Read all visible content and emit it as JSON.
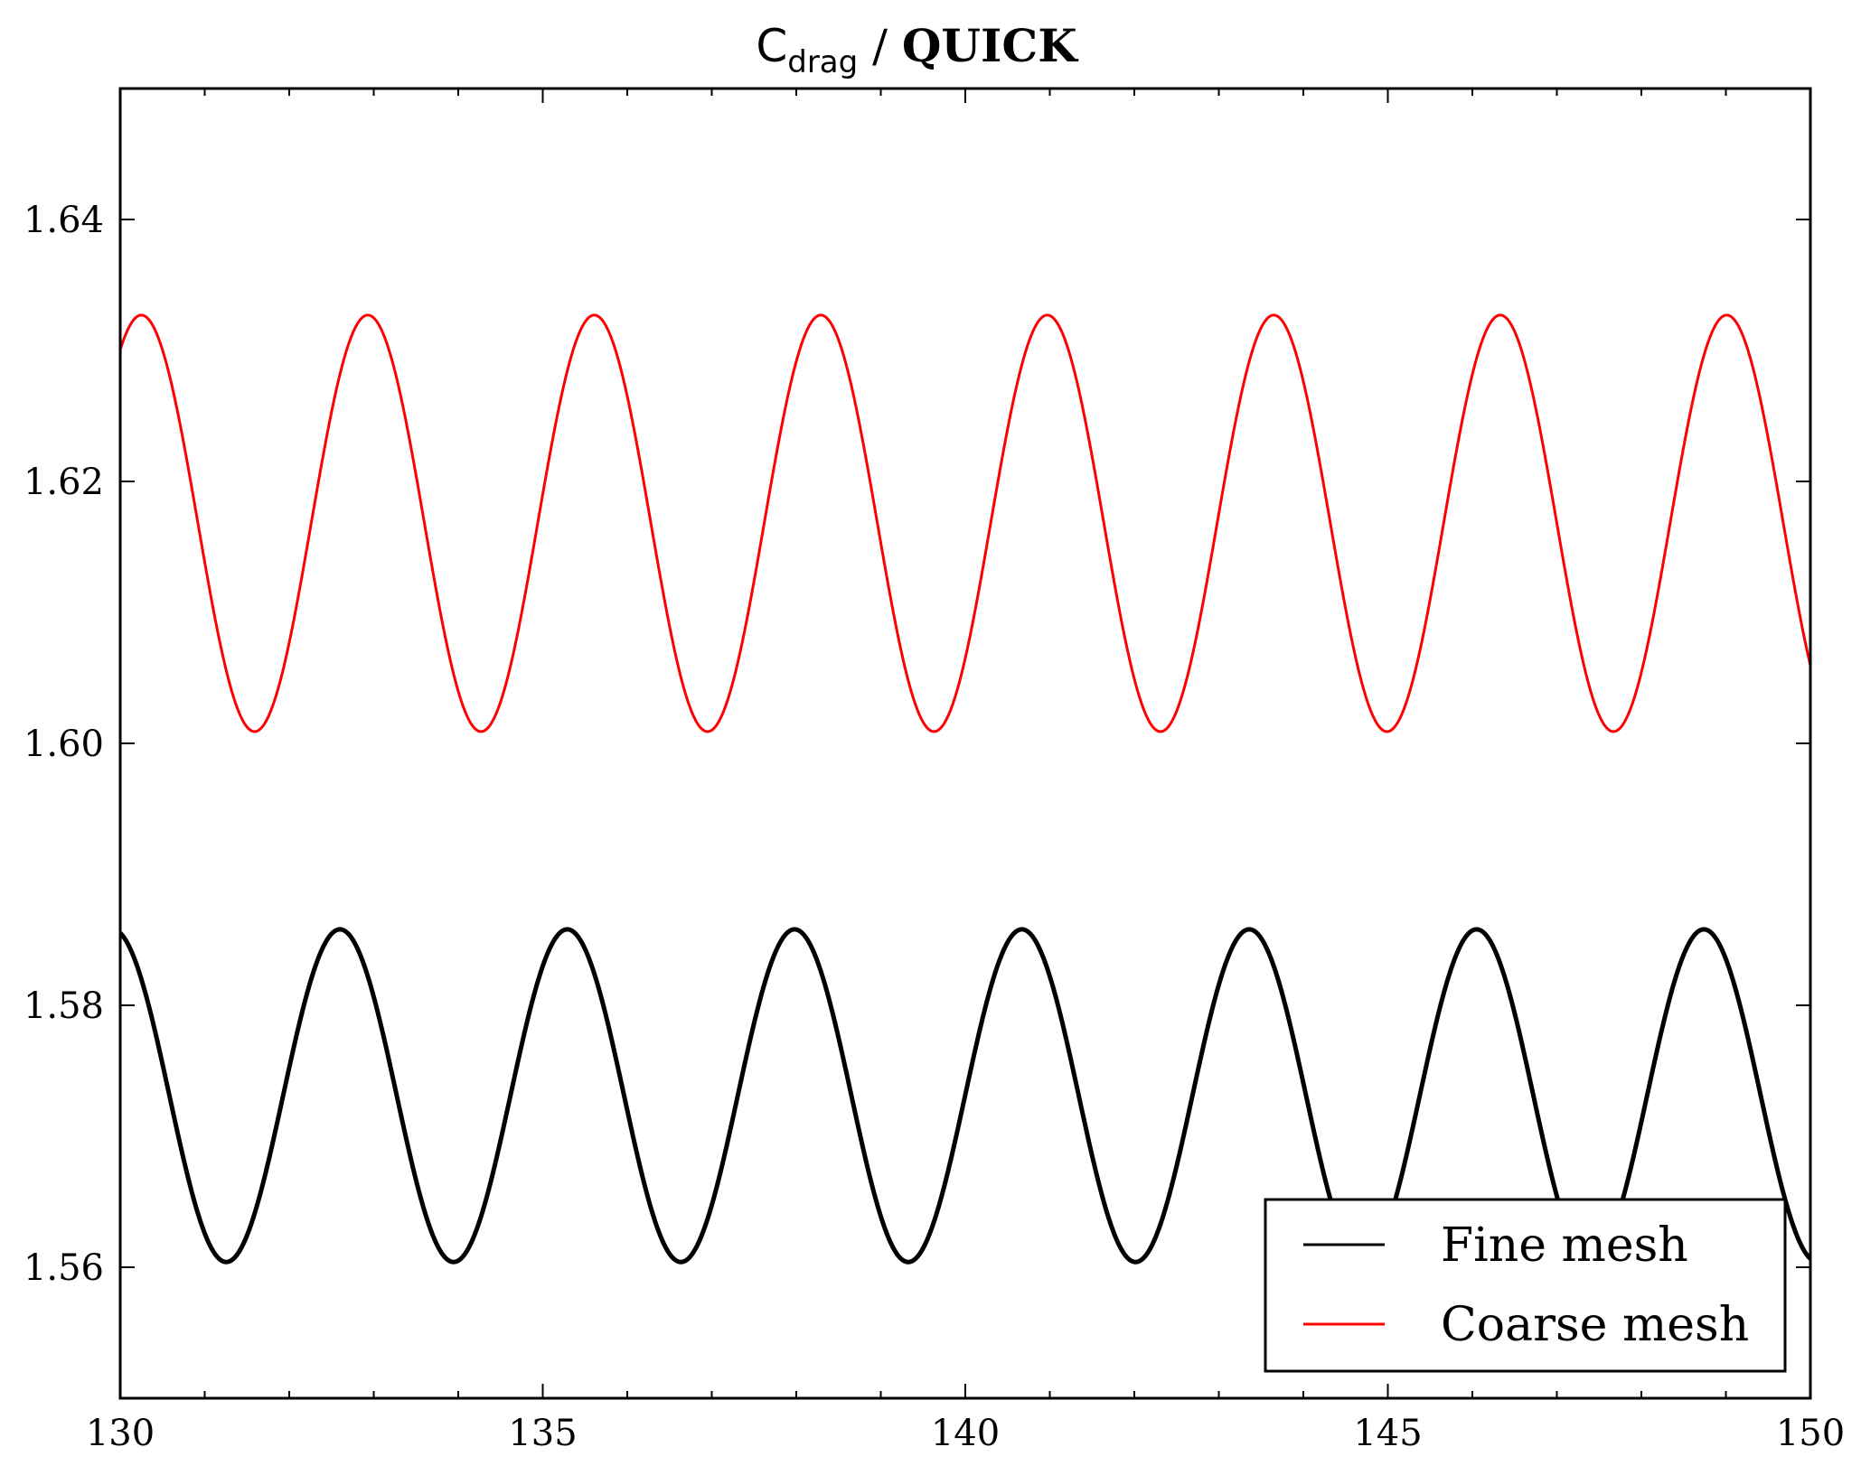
{
  "chart_data": {
    "type": "line",
    "title": {
      "symbol": "C",
      "subscript": "drag",
      "separator": " / ",
      "scheme": "QUICK"
    },
    "xlabel": "",
    "ylabel": "",
    "xlim": [
      130,
      150
    ],
    "ylim": [
      1.55,
      1.65
    ],
    "xticks": [
      130,
      135,
      140,
      145,
      150
    ],
    "xtick_labels": [
      "130",
      "135",
      "140",
      "145",
      "150"
    ],
    "yticks": [
      1.56,
      1.58,
      1.6,
      1.62,
      1.64
    ],
    "ytick_labels": [
      "1.56",
      "1.58",
      "1.60",
      "1.62",
      "1.64"
    ],
    "grid": false,
    "legend": {
      "position": "bottom-right"
    },
    "series": [
      {
        "name": "Fine mesh",
        "color": "#000000",
        "model": "sinusoid",
        "mean": 1.5731,
        "amplitude": 0.0127,
        "period": 2.69,
        "first_peak_x": 132.6,
        "x_start": 130,
        "x_end": 150
      },
      {
        "name": "Coarse mesh",
        "color": "#ff0000",
        "model": "sinusoid",
        "mean": 1.6168,
        "amplitude": 0.0159,
        "period": 2.68,
        "first_peak_x": 130.25,
        "x_start": 130,
        "x_end": 150
      }
    ]
  }
}
